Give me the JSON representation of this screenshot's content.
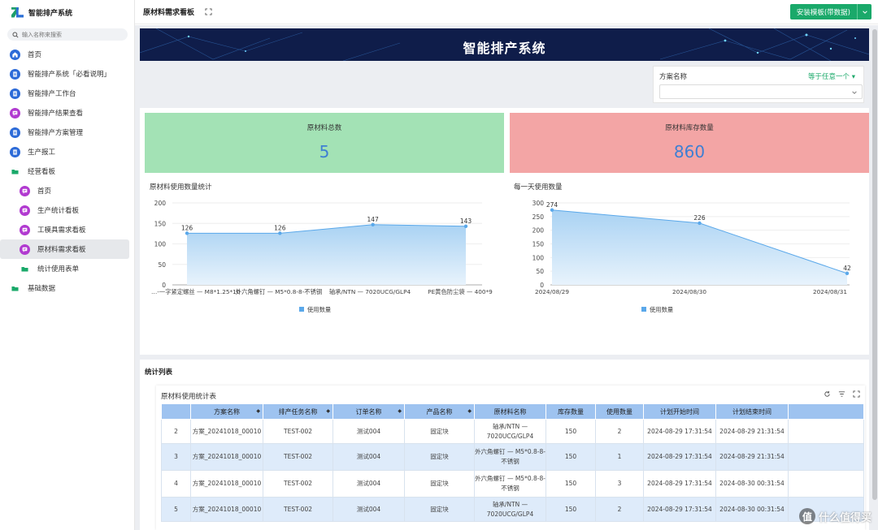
{
  "app": {
    "title": "智能排产系统"
  },
  "sidebar": {
    "search_placeholder": "输入名称来搜索",
    "items": [
      {
        "label": "首页",
        "icon": "home-icon",
        "color": "#2d6bd8"
      },
      {
        "label": "智能排产系统「必看说明」",
        "icon": "doc-icon",
        "color": "#2d6bd8"
      },
      {
        "label": "智能排产工作台",
        "icon": "doc-icon",
        "color": "#2d6bd8"
      },
      {
        "label": "智能排产结果查看",
        "icon": "chat-icon",
        "color": "#b13ad0"
      },
      {
        "label": "智能排产方案管理",
        "icon": "doc-icon",
        "color": "#2d6bd8"
      },
      {
        "label": "生产报工",
        "icon": "doc-icon",
        "color": "#2d6bd8"
      },
      {
        "label": "经营看板",
        "icon": "folder-icon",
        "color": "#1aa96a"
      },
      {
        "label": "首页",
        "icon": "chat-icon",
        "color": "#b13ad0"
      },
      {
        "label": "生产统计看板",
        "icon": "chat-icon",
        "color": "#b13ad0"
      },
      {
        "label": "工模具需求看板",
        "icon": "chat-icon",
        "color": "#b13ad0"
      },
      {
        "label": "原材料需求看板",
        "icon": "chat-icon",
        "color": "#b13ad0"
      },
      {
        "label": "统计使用表单",
        "icon": "folder-icon",
        "color": "#1aa96a"
      },
      {
        "label": "基础数据",
        "icon": "folder-icon",
        "color": "#1aa96a"
      }
    ]
  },
  "header": {
    "page_title": "原材料需求看板",
    "install_label": "安装模板(带数据)"
  },
  "banner": {
    "title": "智能排产系统"
  },
  "filter": {
    "label": "方案名称",
    "operator": "等于任意一个"
  },
  "kpis": {
    "total_label": "原材料总数",
    "total_value": "5",
    "stock_label": "原材料库存数量",
    "stock_value": "860"
  },
  "charts_text": {
    "left_title": "原材料使用数量统计",
    "right_title": "每一天使用数量",
    "legend": "使用数量"
  },
  "chart_data": [
    {
      "type": "area",
      "title": "原材料使用数量统计",
      "categories": [
        "…-一字紧定螺丝 — M8*1.25*10",
        "外六角螺钉 — M5*0.8-8-不锈钢",
        "轴承/NTN — 7020UCG/GLP4",
        "PE黄色防尘袋 — 400*9"
      ],
      "series": [
        {
          "name": "使用数量",
          "values": [
            126,
            126,
            147,
            143
          ]
        }
      ],
      "ylim": [
        0,
        200
      ],
      "yticks": [
        0,
        50,
        100,
        150,
        200
      ],
      "legend": "bottom-center",
      "color": "#5aa8ea"
    },
    {
      "type": "area",
      "title": "每一天使用数量",
      "categories": [
        "2024/08/29",
        "2024/08/30",
        "2024/08/31"
      ],
      "series": [
        {
          "name": "使用数量",
          "values": [
            274,
            226,
            42
          ]
        }
      ],
      "ylim": [
        0,
        300
      ],
      "yticks": [
        0,
        50,
        100,
        150,
        200,
        250,
        300
      ],
      "legend": "bottom-center",
      "color": "#5aa8ea"
    }
  ],
  "table_section": {
    "section_title": "统计列表",
    "inner_title": "原材料使用统计表",
    "columns": [
      "",
      "方案名称",
      "排产任务名称",
      "订单名称",
      "产品名称",
      "原材料名称",
      "库存数量",
      "使用数量",
      "计划开始时间",
      "计划结束时间",
      ""
    ],
    "rows": [
      [
        "2",
        "方案_20241018_00010",
        "TEST-002",
        "测试004",
        "固定块",
        "轴承/NTN — 7020UCG/GLP4",
        "150",
        "2",
        "2024-08-29 17:31:54",
        "2024-08-29 21:31:54",
        ""
      ],
      [
        "3",
        "方案_20241018_00010",
        "TEST-002",
        "测试004",
        "固定块",
        "外六角螺钉 — M5*0.8-8-不锈钢",
        "150",
        "1",
        "2024-08-29 17:31:54",
        "2024-08-29 21:31:54",
        ""
      ],
      [
        "4",
        "方案_20241018_00010",
        "TEST-002",
        "测试004",
        "固定块",
        "外六角螺钉 — M5*0.8-8-不锈钢",
        "150",
        "3",
        "2024-08-29 17:31:54",
        "2024-08-30 00:31:54",
        ""
      ],
      [
        "5",
        "方案_20241018_00010",
        "TEST-002",
        "测试004",
        "固定块",
        "轴承/NTN — 7020UCG/GLP4",
        "150",
        "2",
        "2024-08-29 17:31:54",
        "2024-08-30 00:31:54",
        ""
      ]
    ]
  },
  "watermark": {
    "glyph": "值",
    "text": "什么值得买"
  }
}
